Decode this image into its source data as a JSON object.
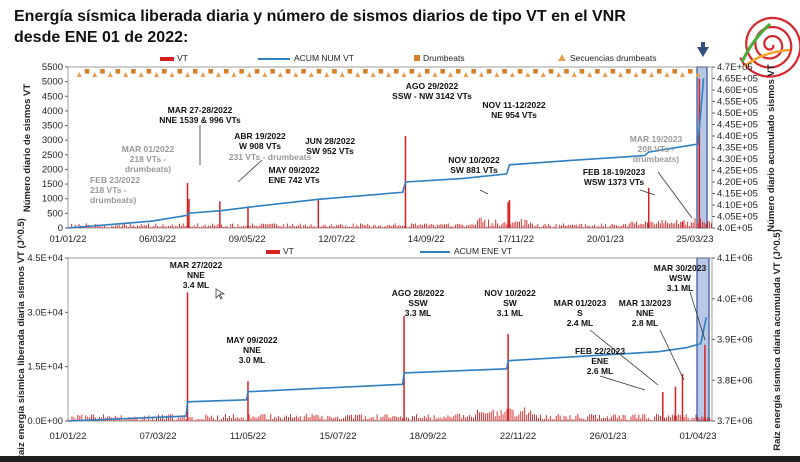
{
  "title_line1": "Energía sísmica liberada diaria y número de sismos diarios de tipo VT en el VNR",
  "title_line2": "desde ENE 01 de 2022:",
  "colors": {
    "vt": "#d42020",
    "acum": "#2f7fc1",
    "drumbeats": "#d7802a",
    "secuencias": "#e8a050",
    "highlight": "#b8c8e6",
    "arrow": "#33507a"
  },
  "chart_data": [
    {
      "type": "bar",
      "legend": [
        "VT",
        "ACUM NUM VT",
        "Drumbeats",
        "Secuencias drumbeats"
      ],
      "ylabel": "Número diario de sismos VT",
      "y2label": "Número diario acumulado sismos VT",
      "ylim": [
        0,
        5500
      ],
      "y2lim": [
        400000,
        470000
      ],
      "yticks": [
        "0",
        "500",
        "1000",
        "1500",
        "2000",
        "2500",
        "3000",
        "3500",
        "4000",
        "4500",
        "5000",
        "5500"
      ],
      "y2ticks": [
        "4.0E+05",
        "4.05E+05",
        "4.10E+05",
        "4.15E+05",
        "4.20E+05",
        "4.25E+05",
        "4.30E+05",
        "4.35E+05",
        "4.40E+05",
        "4.45E+05",
        "4.50E+05",
        "4.55E+05",
        "4.60E+05",
        "4.65E+05",
        "4.7E+05"
      ],
      "xticks": [
        "01/01/22",
        "06/03/22",
        "09/05/22",
        "12/07/22",
        "14/09/22",
        "17/11/22",
        "20/01/23",
        "25/03/23"
      ],
      "peaks": [
        {
          "day": 85,
          "value": 1539
        },
        {
          "day": 86,
          "value": 996
        },
        {
          "day": 108,
          "value": 908
        },
        {
          "day": 128,
          "value": 742
        },
        {
          "day": 178,
          "value": 952
        },
        {
          "day": 240,
          "value": 3142
        },
        {
          "day": 313,
          "value": 881
        },
        {
          "day": 314,
          "value": 954
        },
        {
          "day": 413,
          "value": 1373
        },
        {
          "day": 437,
          "value": 208
        },
        {
          "day": 449,
          "value": 5100
        }
      ],
      "annotations": [
        {
          "lines": [
            "FEB 23/2022",
            "218 VTs -",
            "drumbeats)"
          ],
          "gray": true
        },
        {
          "lines": [
            "MAR 01/2022",
            "218 VTs -",
            "drumbeats)"
          ],
          "gray": true
        },
        {
          "lines": [
            "MAR 27-28/2022",
            "NNE 1539 &  996 VTs"
          ]
        },
        {
          "lines": [
            "ABR 19/2022",
            "W 908 VTs"
          ]
        },
        {
          "lines": [
            "231 VTs - drumbeats"
          ],
          "gray": true
        },
        {
          "lines": [
            "MAY 09/2022",
            "ENE 742 VTs"
          ]
        },
        {
          "lines": [
            "JUN 28/2022",
            "SW 952 VTs"
          ]
        },
        {
          "lines": [
            "AGO 29/2022",
            "SSW - NW 3142 VTs"
          ]
        },
        {
          "lines": [
            "NOV 10/2022",
            "SW 881 VTs"
          ]
        },
        {
          "lines": [
            "NOV 11-12/2022",
            "NE 954 VTs"
          ]
        },
        {
          "lines": [
            "FEB 18-19/2023",
            "WSW 1373 VTs"
          ]
        },
        {
          "lines": [
            "MAR 19/2023",
            "208 VTs -",
            "drumbeats)"
          ],
          "gray": true
        }
      ]
    },
    {
      "type": "bar",
      "legend": [
        "VT",
        "ACUM ENE VT"
      ],
      "ylabel": "Raiz energía sísmica liberada diaria sismos VT (J^0.5)",
      "y2label": "Raiz energía sísmica diaria acumulada VT (J^0.5)",
      "ylim": [
        0,
        45000
      ],
      "y2lim": [
        3700000,
        4100000
      ],
      "yticks": [
        "0.0E+00",
        "1.5E+04",
        "3.0E+04",
        "4.5E+04"
      ],
      "y2ticks": [
        "3.7E+06",
        "3.8E+06",
        "3.9E+06",
        "4.0E+06",
        "4.1E+06"
      ],
      "xticks": [
        "01/01/22",
        "07/03/22",
        "11/05/22",
        "15/07/22",
        "18/09/22",
        "22/11/22",
        "26/01/23",
        "01/04/23"
      ],
      "peaks": [
        {
          "day": 85,
          "value": 35500
        },
        {
          "day": 128,
          "value": 11000
        },
        {
          "day": 239,
          "value": 29000
        },
        {
          "day": 313,
          "value": 24000
        },
        {
          "day": 423,
          "value": 8000
        },
        {
          "day": 432,
          "value": 9500
        },
        {
          "day": 437,
          "value": 13000
        },
        {
          "day": 453,
          "value": 21000
        }
      ],
      "annotations": [
        {
          "lines": [
            "MAR 27/2022",
            "NNE",
            "3.4 ML"
          ]
        },
        {
          "lines": [
            "MAY 09/2022",
            "NNE",
            "3.0 ML"
          ]
        },
        {
          "lines": [
            "AGO 28/2022",
            "SSW",
            "3.3 ML"
          ]
        },
        {
          "lines": [
            "NOV 10/2022",
            "SW",
            "3.1 ML"
          ]
        },
        {
          "lines": [
            "MAR 01/2023",
            "S",
            "2.4 ML"
          ]
        },
        {
          "lines": [
            "MAR 13/2023",
            "NNE",
            "2.8 ML"
          ]
        },
        {
          "lines": [
            "MAR 30/2023",
            "WSW",
            "3.1 ML"
          ]
        },
        {
          "lines": [
            "FEB 22/2023",
            "ENE",
            "2.6 ML"
          ]
        }
      ]
    }
  ]
}
